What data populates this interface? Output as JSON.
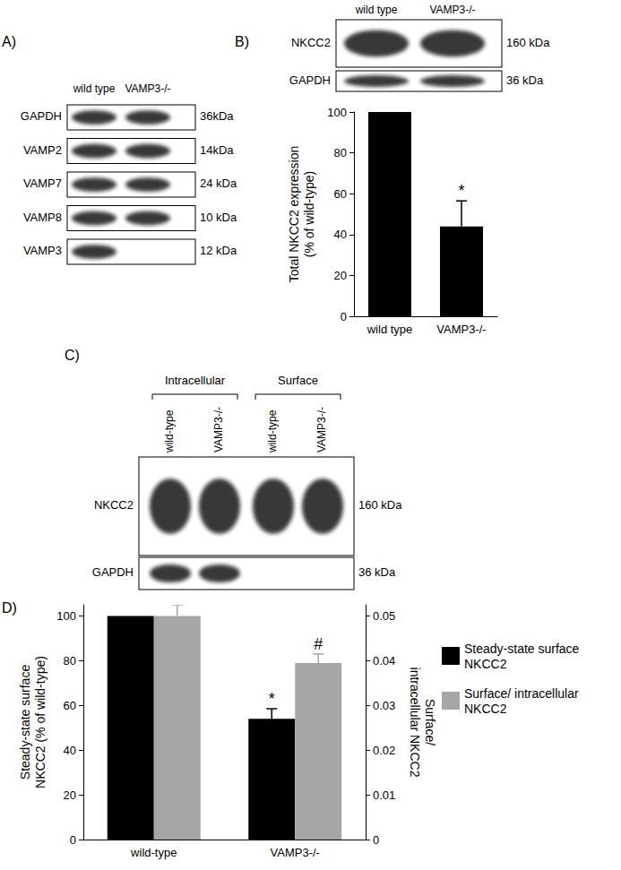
{
  "panel_labels": [
    "A)",
    "B)",
    "C)",
    "D)"
  ],
  "blots": [
    {
      "lanes": [
        "wild type",
        "VAMP3-/-"
      ],
      "rows": [
        {
          "protein": "GAPDH",
          "size": "36kDa",
          "band_present": [
            true,
            true
          ]
        },
        {
          "protein": "VAMP2",
          "size": "14kDa",
          "band_present": [
            true,
            true
          ]
        },
        {
          "protein": "VAMP7",
          "size": "24 kDa",
          "band_present": [
            true,
            true
          ]
        },
        {
          "protein": "VAMP8",
          "size": "10 kDa",
          "band_present": [
            true,
            true
          ]
        },
        {
          "protein": "VAMP3",
          "size": "12 kDa",
          "band_present": [
            true,
            false
          ]
        }
      ]
    },
    {
      "lanes": [
        "wild type",
        "VAMP3-/-"
      ],
      "rows": [
        {
          "protein": "NKCC2",
          "size": "160 kDa",
          "band_present": [
            true,
            true
          ]
        },
        {
          "protein": "GAPDH",
          "size": "36 kDa",
          "band_present": [
            true,
            true
          ]
        }
      ]
    },
    {
      "groups": [
        {
          "label": "Intracellular",
          "lanes": [
            "wild-type",
            "VAMP3-/-"
          ]
        },
        {
          "label": "Surface",
          "lanes": [
            "wild-type",
            "VAMP3-/-"
          ]
        }
      ],
      "rows": [
        {
          "protein": "NKCC2",
          "size": "160 kDa",
          "band_present": [
            true,
            true,
            true,
            true
          ]
        },
        {
          "protein": "GAPDH",
          "size": "36 kDa",
          "band_present": [
            true,
            true,
            false,
            false
          ]
        }
      ]
    }
  ],
  "chart_data": [
    {
      "type": "bar",
      "categories": [
        "wild type",
        "VAMP3-/-"
      ],
      "values": [
        100,
        44
      ],
      "errors": [
        null,
        12.5
      ],
      "annotations": [
        null,
        "*"
      ],
      "color": "#000000",
      "ylabel": "Total NKCC2 expression (% of wild-type)",
      "ylim": [
        0,
        100
      ],
      "yticks": [
        0,
        20,
        40,
        60,
        80,
        100
      ],
      "grid": false
    },
    {
      "type": "bar",
      "categories": [
        "wild-type",
        "VAMP3-/-"
      ],
      "series": [
        {
          "name": "Steady-state surface NKCC2",
          "color": "#000000",
          "values": [
            100,
            54
          ],
          "errors": [
            null,
            4.5
          ],
          "annotations": [
            null,
            "*"
          ]
        },
        {
          "name": "Surface/ intracellular NKCC2",
          "color": "#a6a6a6",
          "values": [
            0.05,
            0.0395
          ],
          "errors": [
            0.0025,
            0.002
          ],
          "annotations": [
            null,
            "#"
          ],
          "axis": "y2"
        }
      ],
      "ylabel": "Steady-state surface NKCC2 (% of wild-type)",
      "y2label": "Surface/ intracellular NKCC2",
      "ylim": [
        0,
        105
      ],
      "yticks": [
        0,
        20,
        40,
        60,
        80,
        100
      ],
      "y2lim": [
        0,
        0.0525
      ],
      "y2ticks": [
        0,
        0.01,
        0.02,
        0.03,
        0.04,
        0.05
      ],
      "legend": "right",
      "grid": false
    }
  ]
}
